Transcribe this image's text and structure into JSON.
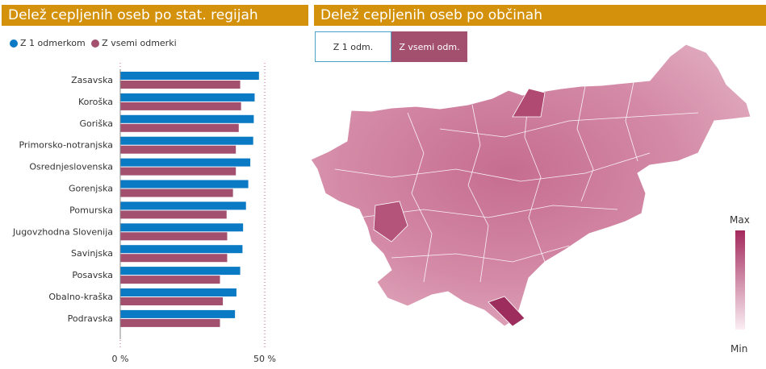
{
  "left_panel": {
    "title": "Delež cepljenih oseb po stat. regijah"
  },
  "right_panel": {
    "title": "Delež cepljenih oseb po občinah"
  },
  "toggle": {
    "one_dose": "Z 1 odm.",
    "all_doses": "Z vsemi odm."
  },
  "map_scale": {
    "max_label": "Max",
    "min_label": "Min"
  },
  "colors": {
    "one_dose": "#0a7ac4",
    "all_doses": "#a3506f",
    "header": "#d4920c"
  },
  "chart_data": {
    "type": "bar",
    "orientation": "horizontal",
    "categories": [
      "Zasavska",
      "Koroška",
      "Goriška",
      "Primorsko-notranjska",
      "Osrednjeslovenska",
      "Gorenjska",
      "Pomurska",
      "Jugovzhodna Slovenija",
      "Savinjska",
      "Posavska",
      "Obalno-kraška",
      "Podravska"
    ],
    "series": [
      {
        "name": "Z 1 odmerkom",
        "values": [
          48,
          46.5,
          46.2,
          46,
          45,
          44.3,
          43.5,
          42.5,
          42.3,
          41.5,
          40.2,
          39.7
        ]
      },
      {
        "name": "Z vsemi odmerki",
        "values": [
          41.5,
          41.8,
          41,
          40,
          40,
          39,
          36.8,
          37,
          37,
          34.5,
          35.5,
          34.5
        ]
      }
    ],
    "xlim": [
      0,
      50
    ],
    "xticks": [
      "0 %",
      "50 %"
    ],
    "legend_position": "top-left"
  }
}
